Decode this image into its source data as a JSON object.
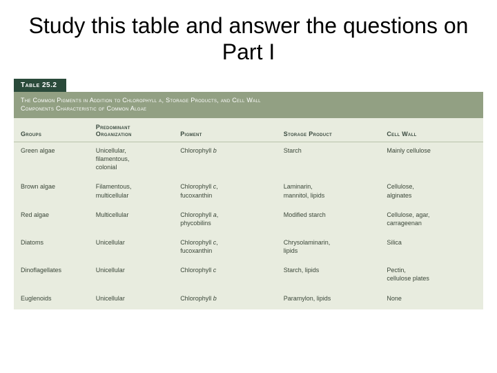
{
  "slide": {
    "title": "Study this table and answer the questions on Part I"
  },
  "table": {
    "tab": "Table 25.2",
    "caption_line1": "The Common Pigments in Addition to Chlorophyll a, Storage Products, and Cell Wall",
    "caption_line2": "Components Characteristic of Common Algae",
    "columns": {
      "groups": "Groups",
      "organization": "Predominant\nOrganization",
      "pigment": "Pigment",
      "storage": "Storage Product",
      "cellwall": "Cell Wall"
    },
    "rows": [
      {
        "group": "Green algae",
        "organization": "Unicellular,\n  filamentous,\n  colonial",
        "pigment_pre": "Chlorophyll ",
        "pigment_ital": "b",
        "pigment_post": "",
        "storage": "Starch",
        "cellwall": "Mainly cellulose"
      },
      {
        "group": "Brown algae",
        "organization": "Filamentous,\n  multicellular",
        "pigment_pre": "Chlorophyll ",
        "pigment_ital": "c",
        "pigment_post": ",\n  fucoxanthin",
        "storage": "Laminarin,\n  mannitol, lipids",
        "cellwall": "Cellulose,\n  alginates"
      },
      {
        "group": "Red algae",
        "organization": "Multicellular",
        "pigment_pre": "Chlorophyll ",
        "pigment_ital": "a",
        "pigment_post": ",\n  phycobilins",
        "storage": "Modified starch",
        "cellwall": "Cellulose, agar,\n  carrageenan"
      },
      {
        "group": "Diatoms",
        "organization": "Unicellular",
        "pigment_pre": "Chlorophyll ",
        "pigment_ital": "c",
        "pigment_post": ",\n  fucoxanthin",
        "storage": "Chrysolaminarin,\n  lipids",
        "cellwall": "Silica"
      },
      {
        "group": "Dinoflagellates",
        "organization": "Unicellular",
        "pigment_pre": "Chlorophyll ",
        "pigment_ital": "c",
        "pigment_post": "",
        "storage": "Starch, lipids",
        "cellwall": "Pectin,\n  cellulose plates"
      },
      {
        "group": "Euglenoids",
        "organization": "Unicellular",
        "pigment_pre": "Chlorophyll ",
        "pigment_ital": "b",
        "pigment_post": "",
        "storage": "Paramylon, lipids",
        "cellwall": "None"
      }
    ]
  },
  "style": {
    "colors": {
      "slide_bg": "#ffffff",
      "title_text": "#000000",
      "tab_bg": "#2a4a3a",
      "tab_text": "#ffffff",
      "caption_bg": "#92a083",
      "caption_text": "#ffffff",
      "table_bg": "#e8ecdf",
      "header_text": "#3a4a3f",
      "cell_text": "#3a4638",
      "header_border": "#b8c2ab"
    },
    "fonts": {
      "title_size_pt": 24,
      "table_size_pt": 7
    }
  }
}
